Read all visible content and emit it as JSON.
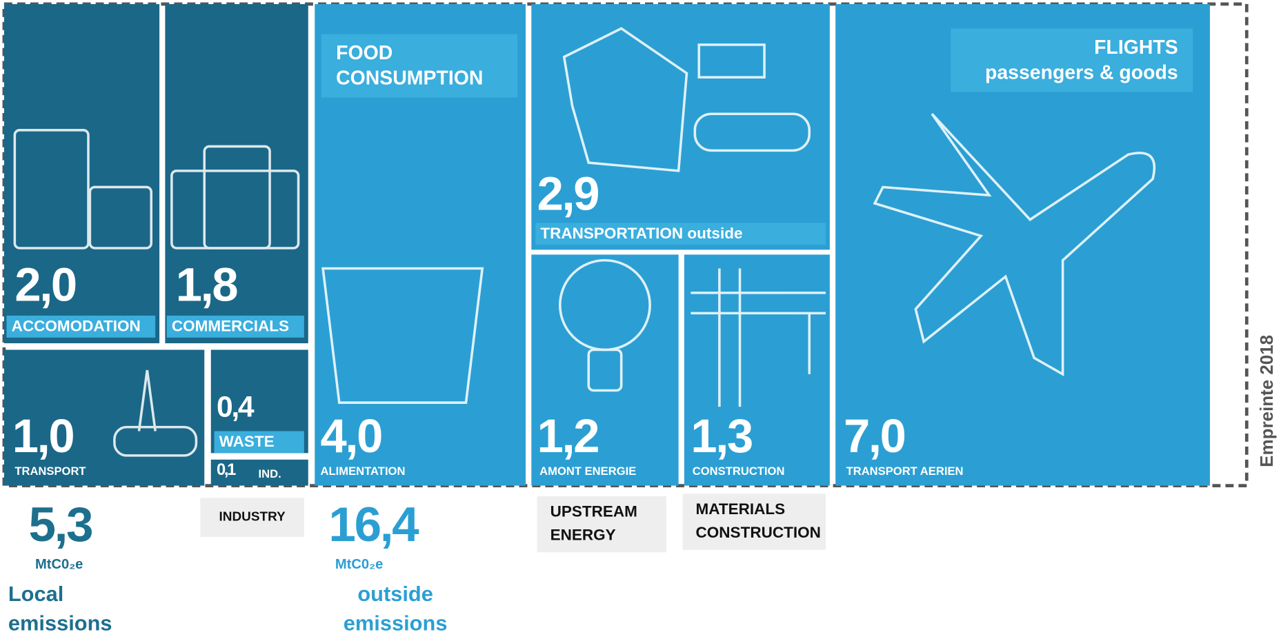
{
  "tiles": [
    {
      "value": "2,0",
      "label": "ACCOMODATION"
    },
    {
      "value": "1,8",
      "label": "COMMERCIALS"
    },
    {
      "value": "1,0",
      "label": "TRANSPORT"
    },
    {
      "value": "0,4",
      "label": "WASTE"
    },
    {
      "value": "0,1",
      "label": "IND."
    },
    {
      "value": "4,0",
      "label": "ALIMENTATION",
      "heading": "FOOD\nCONSUMPTION"
    },
    {
      "value": "1,2",
      "label": "AMONT ENERGIE"
    },
    {
      "value": "1,3",
      "label": "CONSTRUCTION"
    },
    {
      "value": "7,0",
      "label": "TRANSPORT AERIEN",
      "heading": "FLIGHTS\npassengers & goods"
    },
    {
      "value": "2,9",
      "label": "TRANSPORTATION  outside"
    }
  ],
  "callouts": [
    "INDUSTRY",
    "UPSTREAM\nENERGY",
    "MATERIALS\nCONSTRUCTION"
  ],
  "totals": [
    {
      "value": "5,3",
      "unit": "MtC0₂e",
      "caption": "Local\nemissions"
    },
    {
      "value": "16,4",
      "unit": "MtC0₂e",
      "caption": "outside\nemissions"
    }
  ],
  "side_label": "Empreinte 2018"
}
